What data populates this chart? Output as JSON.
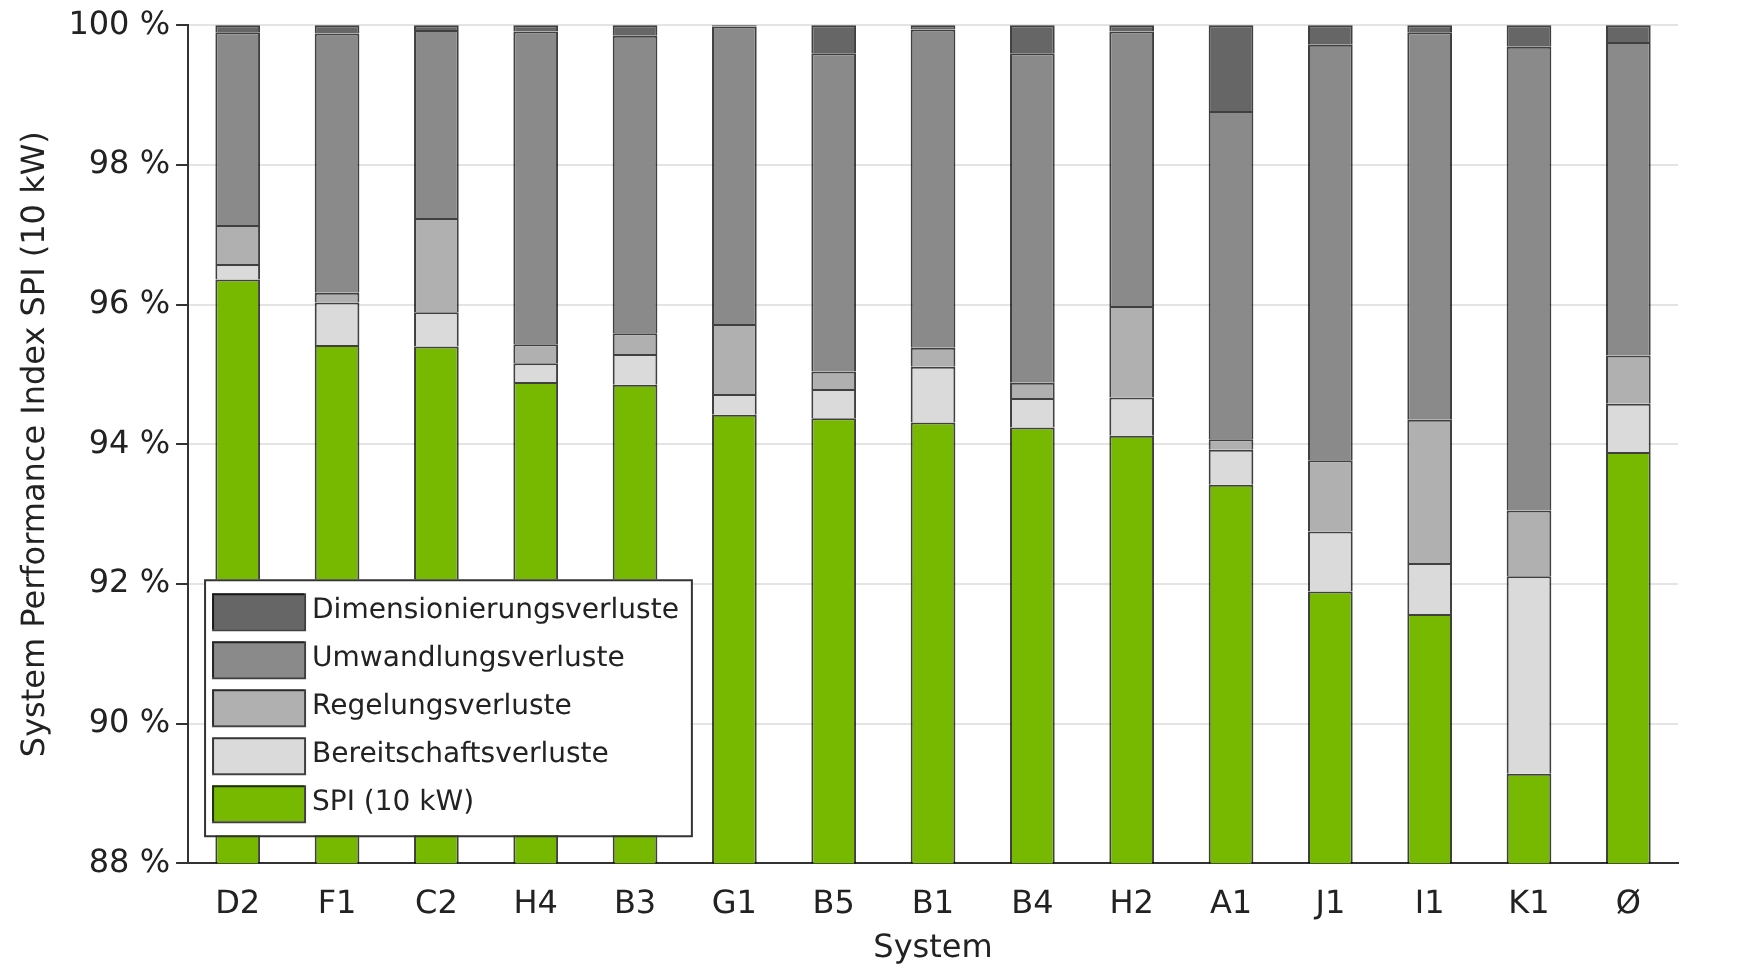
{
  "chart_data": {
    "type": "bar",
    "stacked": true,
    "xlabel": "System",
    "ylabel": "System Performance Index SPI (10 kW)",
    "categories": [
      "D2",
      "F1",
      "C2",
      "H4",
      "B3",
      "G1",
      "B5",
      "B1",
      "B4",
      "H2",
      "A1",
      "J1",
      "I1",
      "K1",
      "Ø"
    ],
    "series": [
      {
        "name": "SPI (10 kW)",
        "color": "#76b900",
        "values": [
          96.36,
          95.42,
          95.4,
          94.89,
          94.85,
          94.42,
          94.37,
          94.31,
          94.24,
          94.12,
          93.42,
          91.89,
          91.57,
          89.28,
          93.89
        ]
      },
      {
        "name": "Bereitschaftsverluste",
        "color": "#dadada",
        "values": [
          0.22,
          0.61,
          0.49,
          0.27,
          0.44,
          0.3,
          0.42,
          0.8,
          0.42,
          0.55,
          0.5,
          0.86,
          0.73,
          2.83,
          0.69
        ],
        "base": [
          96.36,
          95.42,
          95.4,
          94.89,
          94.85,
          94.42,
          94.37,
          94.31,
          94.24,
          94.12,
          93.42,
          91.89,
          91.57,
          89.28,
          93.89
        ]
      },
      {
        "name": "Regelungsverluste",
        "color": "#b0b0b0",
        "values": [
          0.56,
          0.14,
          1.35,
          0.27,
          0.3,
          1.0,
          0.25,
          0.27,
          0.22,
          1.31,
          0.15,
          1.02,
          2.05,
          0.94,
          0.69
        ],
        "base": [
          96.58,
          96.03,
          95.89,
          95.16,
          95.29,
          94.72,
          94.79,
          95.11,
          94.66,
          94.67,
          93.92,
          92.75,
          92.3,
          92.11,
          94.58
        ]
      },
      {
        "name": "Umwandlungsverluste",
        "color": "#8a8a8a",
        "values": [
          2.76,
          3.71,
          2.69,
          4.48,
          4.26,
          4.26,
          4.56,
          4.56,
          4.72,
          3.93,
          4.7,
          5.95,
          5.55,
          6.64,
          4.49
        ],
        "base": [
          97.14,
          96.17,
          97.24,
          95.43,
          95.59,
          95.72,
          95.04,
          95.38,
          94.88,
          95.98,
          94.07,
          93.77,
          94.35,
          93.05,
          95.27
        ]
      },
      {
        "name": "Dimensionierungsverluste",
        "color": "#666666",
        "values": [
          0.1,
          0.12,
          0.07,
          0.09,
          0.15,
          0.02,
          0.4,
          0.06,
          0.4,
          0.09,
          1.23,
          0.28,
          0.1,
          0.31,
          0.24
        ],
        "base": [
          99.9,
          99.88,
          99.93,
          99.91,
          99.85,
          99.98,
          99.6,
          99.94,
          99.6,
          99.91,
          98.77,
          99.72,
          99.9,
          99.69,
          99.76
        ]
      }
    ],
    "ylim": [
      88,
      100
    ],
    "yticks": [
      {
        "value": 88,
        "label": "88 %"
      },
      {
        "value": 90,
        "label": "90 %"
      },
      {
        "value": 92,
        "label": "92 %"
      },
      {
        "value": 94,
        "label": "94 %"
      },
      {
        "value": 96,
        "label": "96 %"
      },
      {
        "value": 98,
        "label": "98 %"
      },
      {
        "value": 100,
        "label": "100 %"
      }
    ],
    "grid": "y",
    "legend": "bottom left"
  }
}
